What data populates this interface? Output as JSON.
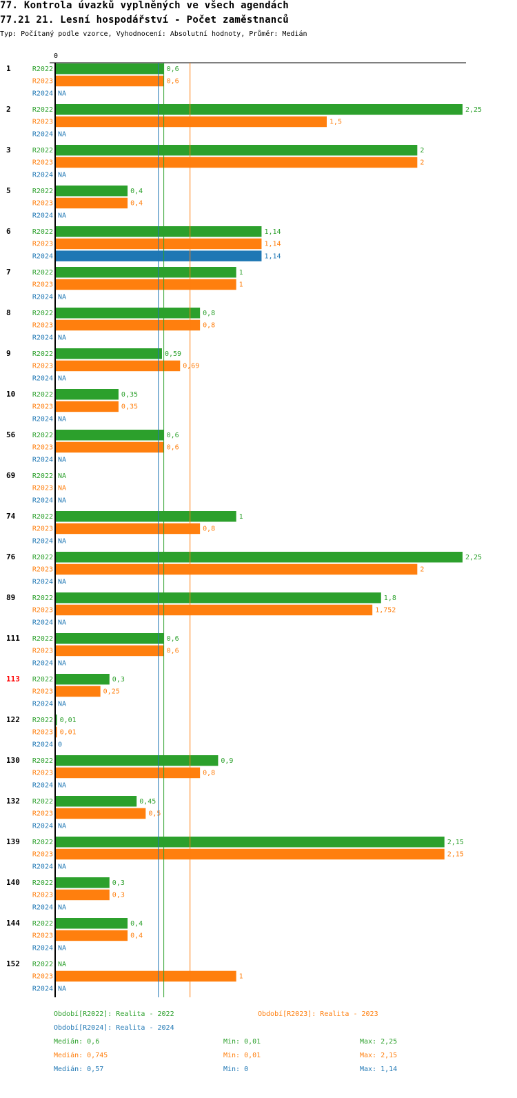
{
  "title": "77. Kontrola úvazků vyplněných ve všech agendách",
  "subtitle": "77.21 21. Lesní hospodářství - Počet zaměstnanců",
  "info": "Typ: Počítaný podle vzorce, Vyhodnocení: Absolutní hodnoty, Průměr: Medián",
  "chart_data": {
    "type": "bar",
    "orientation": "horizontal",
    "xmin": 0,
    "xmax": 2.25,
    "zero_label": "0",
    "series": [
      {
        "name": "R2022",
        "color": "#2ca02c"
      },
      {
        "name": "R2023",
        "color": "#ff7f0e"
      },
      {
        "name": "R2024",
        "color": "#1f77b4"
      }
    ],
    "groups": [
      {
        "id": "1",
        "values": [
          0.6,
          0.6,
          null
        ]
      },
      {
        "id": "2",
        "values": [
          2.25,
          1.5,
          null
        ]
      },
      {
        "id": "3",
        "values": [
          2,
          2,
          null
        ]
      },
      {
        "id": "5",
        "values": [
          0.4,
          0.4,
          null
        ]
      },
      {
        "id": "6",
        "values": [
          1.14,
          1.14,
          1.14
        ]
      },
      {
        "id": "7",
        "values": [
          1,
          1,
          null
        ]
      },
      {
        "id": "8",
        "values": [
          0.8,
          0.8,
          null
        ]
      },
      {
        "id": "9",
        "values": [
          0.59,
          0.69,
          null
        ]
      },
      {
        "id": "10",
        "values": [
          0.35,
          0.35,
          null
        ]
      },
      {
        "id": "56",
        "values": [
          0.6,
          0.6,
          null
        ]
      },
      {
        "id": "69",
        "values": [
          null,
          null,
          null
        ]
      },
      {
        "id": "74",
        "values": [
          1,
          0.8,
          null
        ]
      },
      {
        "id": "76",
        "values": [
          2.25,
          2,
          null
        ]
      },
      {
        "id": "89",
        "values": [
          1.8,
          1.752,
          null
        ]
      },
      {
        "id": "111",
        "values": [
          0.6,
          0.6,
          null
        ]
      },
      {
        "id": "113",
        "values": [
          0.3,
          0.25,
          null
        ],
        "highlight": "#ff0000"
      },
      {
        "id": "122",
        "values": [
          0.01,
          0.01,
          0
        ]
      },
      {
        "id": "130",
        "values": [
          0.9,
          0.8,
          null
        ]
      },
      {
        "id": "132",
        "values": [
          0.45,
          0.5,
          null
        ]
      },
      {
        "id": "139",
        "values": [
          2.15,
          2.15,
          null
        ]
      },
      {
        "id": "140",
        "values": [
          0.3,
          0.3,
          null
        ]
      },
      {
        "id": "144",
        "values": [
          0.4,
          0.4,
          null
        ]
      },
      {
        "id": "152",
        "values": [
          null,
          1,
          null
        ]
      }
    ],
    "na_label": "NA",
    "medians": [
      0.6,
      0.745,
      0.57
    ]
  },
  "legend": {
    "periods": [
      "Období[R2022]: Realita - 2022",
      "Období[R2023]: Realita - 2023",
      "Období[R2024]: Realita - 2024"
    ],
    "stats": [
      {
        "median": "Medián: 0,6",
        "min": "Min: 0,01",
        "max": "Max: 2,25"
      },
      {
        "median": "Medián: 0,745",
        "min": "Min: 0,01",
        "max": "Max: 2,15"
      },
      {
        "median": "Medián: 0,57",
        "min": "Min: 0",
        "max": "Max: 1,14"
      }
    ]
  }
}
